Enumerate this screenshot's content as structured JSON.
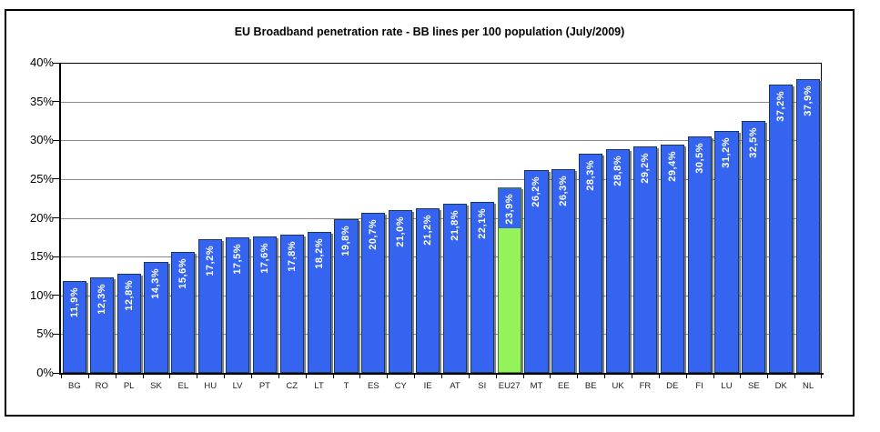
{
  "chart_data": {
    "type": "bar",
    "title": "EU Broadband penetration rate - BB lines per 100 population (July/2009)",
    "categories": [
      "BG",
      "RO",
      "PL",
      "SK",
      "EL",
      "HU",
      "LV",
      "PT",
      "CZ",
      "LT",
      "T",
      "ES",
      "CY",
      "IE",
      "AT",
      "SI",
      "EU27",
      "MT",
      "EE",
      "BE",
      "UK",
      "FR",
      "DE",
      "FI",
      "LU",
      "SE",
      "DK",
      "NL"
    ],
    "values": [
      11.9,
      12.3,
      12.8,
      14.3,
      15.6,
      17.2,
      17.5,
      17.6,
      17.8,
      18.2,
      19.8,
      20.7,
      21.0,
      21.2,
      21.8,
      22.1,
      23.9,
      26.2,
      26.3,
      28.3,
      28.8,
      29.2,
      29.4,
      30.5,
      31.2,
      32.5,
      37.2,
      37.9
    ],
    "display_labels": [
      "11,9%",
      "12,3%",
      "12,8%",
      "14,3%",
      "15,6%",
      "17,2%",
      "17,5%",
      "17,6%",
      "17,8%",
      "18,2%",
      "19,8%",
      "20,7%",
      "21,0%",
      "21,2%",
      "21,8%",
      "22,1%",
      "23,9%",
      "26,2%",
      "26,3%",
      "28,3%",
      "28,8%",
      "29,2%",
      "29,4%",
      "30,5%",
      "31,2%",
      "32,5%",
      "37,2%",
      "37,9%"
    ],
    "highlight_index": 16,
    "highlight_category": "EU27",
    "ylim": [
      0,
      40
    ],
    "ytick_step": 5,
    "ytick_labels": [
      "0%",
      "5%",
      "10%",
      "15%",
      "20%",
      "25%",
      "30%",
      "35%",
      "40%"
    ],
    "grid": true,
    "legend": "none",
    "colors": {
      "bar_fill": "#3565f0",
      "bar_border": "#17375e",
      "highlight_fill": "#94f25a",
      "highlight_border": "#4e7d2a",
      "highlight_label_bg": "#3565f0",
      "value_label_text": "#ffffff",
      "gridline": "#8a8a8a",
      "axis": "#000000",
      "background": "#ffffff"
    }
  }
}
